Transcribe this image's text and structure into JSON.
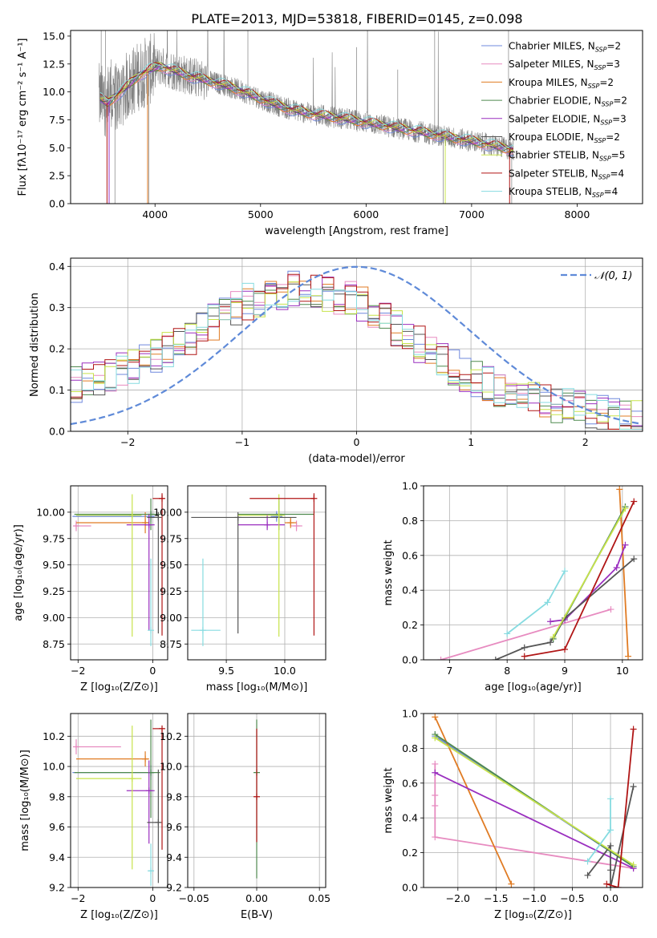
{
  "figure_title": "PLATE=2013, MJD=53818, FIBERID=0145, z=0.098",
  "colors": {
    "blue": "#6f88dd",
    "pink": "#e78bc0",
    "orange": "#e07b23",
    "green": "#4f8a4f",
    "purple": "#9a2fbf",
    "black": "#555555",
    "yellow": "#c7e34a",
    "red": "#b01515",
    "cyan": "#86dbe0",
    "data_gray": "#808080",
    "normal_blue": "#5f8ad8"
  },
  "models": [
    {
      "name": "Chabrier MILES, N$_{SSP}$=2",
      "label": "Chabrier MILES, N",
      "sub": "SSP",
      "suffix": "=2",
      "color": "#6f88dd"
    },
    {
      "name": "Salpeter MILES, N$_{SSP}$=3",
      "label": "Salpeter MILES, N",
      "sub": "SSP",
      "suffix": "=3",
      "color": "#e78bc0"
    },
    {
      "name": "Kroupa MILES, N$_{SSP}$=2",
      "label": "Kroupa MILES, N",
      "sub": "SSP",
      "suffix": "=2",
      "color": "#e07b23"
    },
    {
      "name": "Chabrier ELODIE, N$_{SSP}$=2",
      "label": "Chabrier ELODIE, N",
      "sub": "SSP",
      "suffix": "=2",
      "color": "#4f8a4f"
    },
    {
      "name": "Salpeter ELODIE, N$_{SSP}$=3",
      "label": "Salpeter ELODIE, N",
      "sub": "SSP",
      "suffix": "=3",
      "color": "#9a2fbf"
    },
    {
      "name": "Kroupa ELODIE, N$_{SSP}$=2",
      "label": "Kroupa ELODIE, N",
      "sub": "SSP",
      "suffix": "=2",
      "color": "#555555"
    },
    {
      "name": "Chabrier STELIB, N$_{SSP}$=5",
      "label": "Chabrier STELIB, N",
      "sub": "SSP",
      "suffix": "=5",
      "color": "#c7e34a"
    },
    {
      "name": "Salpeter STELIB, N$_{SSP}$=4",
      "label": "Salpeter STELIB, N",
      "sub": "SSP",
      "suffix": "=4",
      "color": "#b01515"
    },
    {
      "name": "Kroupa STELIB, N$_{SSP}$=4",
      "label": "Kroupa STELIB, N",
      "sub": "SSP",
      "suffix": "=4",
      "color": "#86dbe0"
    }
  ],
  "chart_data": [
    {
      "id": "spectrum",
      "type": "line",
      "title": "PLATE=2013, MJD=53818, FIBERID=0145, z=0.098",
      "xlabel": "wavelength [Angstrom, rest frame]",
      "ylabel": "Flux [fλ10⁻¹⁷ erg cm⁻² s⁻¹ A⁻¹]",
      "xlim": [
        3200,
        8620
      ],
      "ylim": [
        0,
        15.5
      ],
      "xticks": [
        4000,
        5000,
        6000,
        7000,
        8000
      ],
      "yticks": [
        0.0,
        2.5,
        5.0,
        7.5,
        10.0,
        12.5,
        15.0
      ],
      "grid": false,
      "legend": "upper right",
      "continuum_model": {
        "x": [
          3480,
          3550,
          3650,
          3750,
          3850,
          3950,
          4050,
          4150,
          4300,
          4500,
          4700,
          4900,
          5100,
          5300,
          5500,
          5800,
          6100,
          6400,
          6700,
          7000,
          7300,
          7400
        ],
        "y": [
          9.4,
          9.0,
          9.8,
          10.6,
          11.5,
          12.0,
          12.3,
          12.0,
          11.5,
          11.0,
          10.5,
          9.8,
          9.0,
          8.4,
          8.0,
          7.6,
          7.1,
          6.6,
          6.1,
          5.6,
          5.0,
          4.8
        ]
      },
      "data_range": {
        "x": [
          3470,
          7400
        ],
        "y_peak": 15.5
      }
    },
    {
      "id": "residual_hist",
      "type": "line",
      "xlabel": "(data-model)/error",
      "ylabel": "Normed distribution",
      "xlim": [
        -2.5,
        2.5
      ],
      "ylim": [
        0,
        0.42
      ],
      "xticks": [
        -2,
        -1,
        0,
        1,
        2
      ],
      "yticks": [
        0.0,
        0.1,
        0.2,
        0.3,
        0.4
      ],
      "grid": true,
      "legend": "upper right",
      "normal_label": "𝒩(0, 1)",
      "series_shape": {
        "x": [
          -2.5,
          -2.0,
          -1.5,
          -1.0,
          -0.5,
          0.0,
          0.5,
          1.0,
          1.5,
          2.0,
          2.5
        ],
        "y": [
          0.11,
          0.15,
          0.22,
          0.31,
          0.35,
          0.32,
          0.22,
          0.13,
          0.08,
          0.05,
          0.03
        ]
      }
    },
    {
      "id": "age_vs_Z",
      "type": "scatter",
      "xlabel": "Z [log₁₀(Z/Z⊙)]",
      "ylabel": "age  [log₁₀(age/yr)]",
      "xlim": [
        -2.2,
        0.4
      ],
      "ylim": [
        8.6,
        10.25
      ],
      "xticks": [
        -2,
        0
      ],
      "yticks": [
        8.75,
        9.0,
        9.25,
        9.5,
        9.75,
        10.0
      ],
      "grid": true,
      "points": [
        {
          "model": 0,
          "x": -0.05,
          "y": 9.96,
          "xerr": [
            2.1,
            0.1
          ],
          "yerr": [
            0.05,
            0.05
          ]
        },
        {
          "model": 1,
          "x": -2.05,
          "y": 9.87,
          "xerr": [
            0.05,
            0.4
          ],
          "yerr": [
            0.05,
            0.05
          ]
        },
        {
          "model": 2,
          "x": -0.2,
          "y": 9.9,
          "xerr": [
            1.85,
            0.1
          ],
          "yerr": [
            0.1,
            0.1
          ]
        },
        {
          "model": 3,
          "x": -0.05,
          "y": 9.98,
          "xerr": [
            2.05,
            0.25
          ],
          "yerr": [
            0.15,
            0.15
          ]
        },
        {
          "model": 4,
          "x": -0.1,
          "y": 9.88,
          "xerr": [
            0.6,
            0.15
          ],
          "yerr": [
            1.0,
            0.1
          ]
        },
        {
          "model": 5,
          "x": 0.15,
          "y": 9.95,
          "xerr": [
            0.3,
            0.05
          ],
          "yerr": [
            1.1,
            0.05
          ]
        },
        {
          "model": 6,
          "x": -0.55,
          "y": 9.97,
          "xerr": [
            1.5,
            0.25
          ],
          "yerr": [
            1.15,
            0.2
          ]
        },
        {
          "model": 7,
          "x": 0.25,
          "y": 10.13,
          "xerr": [
            0.25,
            0.05
          ],
          "yerr": [
            1.3,
            0.05
          ]
        },
        {
          "model": 8,
          "x": -0.05,
          "y": 8.88,
          "xerr": [
            0.0,
            0.0
          ],
          "yerr": [
            0.15,
            0.68
          ]
        }
      ]
    },
    {
      "id": "age_vs_mass",
      "type": "scatter",
      "xlabel": "mass [log₁₀(M/M⊙)]",
      "ylabel": "",
      "xlim": [
        9.17,
        10.35
      ],
      "ylim": [
        8.6,
        10.25
      ],
      "xticks": [
        9.5,
        10.0
      ],
      "yticks": [
        8.75,
        9.0,
        9.25,
        9.5,
        9.75,
        10.0
      ],
      "grid": true,
      "points": [
        {
          "model": 0,
          "x": 9.93,
          "y": 9.96,
          "xerr": [
            0.05,
            0.05
          ],
          "yerr": [
            0.05,
            0.05
          ]
        },
        {
          "model": 1,
          "x": 10.1,
          "y": 9.87,
          "xerr": [
            0.05,
            0.05
          ],
          "yerr": [
            0.05,
            0.05
          ]
        },
        {
          "model": 2,
          "x": 10.05,
          "y": 9.9,
          "xerr": [
            0.05,
            0.05
          ],
          "yerr": [
            0.05,
            0.05
          ]
        },
        {
          "model": 3,
          "x": 9.95,
          "y": 9.98,
          "xerr": [
            0.35,
            0.3
          ],
          "yerr": [
            0.15,
            0.15
          ]
        },
        {
          "model": 4,
          "x": 9.85,
          "y": 9.88,
          "xerr": [
            0.25,
            0.15
          ],
          "yerr": [
            0.05,
            0.1
          ]
        },
        {
          "model": 5,
          "x": 9.6,
          "y": 9.95,
          "xerr": [
            0.4,
            0.5
          ],
          "yerr": [
            1.1,
            0.05
          ]
        },
        {
          "model": 6,
          "x": 9.95,
          "y": 9.97,
          "xerr": [
            0.35,
            0.05
          ],
          "yerr": [
            1.15,
            0.2
          ]
        },
        {
          "model": 7,
          "x": 10.25,
          "y": 10.13,
          "xerr": [
            0.55,
            0.0
          ],
          "yerr": [
            1.3,
            0.05
          ]
        },
        {
          "model": 8,
          "x": 9.3,
          "y": 8.88,
          "xerr": [
            0.1,
            0.15
          ],
          "yerr": [
            0.15,
            0.68
          ]
        }
      ]
    },
    {
      "id": "massweight_vs_age",
      "type": "line",
      "xlabel": "age  [log₁₀(age/yr)]",
      "ylabel": "mass weight",
      "xlim": [
        6.55,
        10.35
      ],
      "ylim": [
        0,
        1.0
      ],
      "xticks": [
        7,
        8,
        9,
        10
      ],
      "yticks": [
        0.0,
        0.2,
        0.4,
        0.6,
        0.8,
        1.0
      ],
      "grid": true,
      "series": [
        {
          "model": 0,
          "x": [
            8.8,
            10.05
          ],
          "y": [
            0.12,
            0.88
          ]
        },
        {
          "model": 1,
          "x": [
            6.85,
            9.8
          ],
          "y": [
            0.0,
            0.29
          ]
        },
        {
          "model": 2,
          "x": [
            10.1,
            9.95
          ],
          "y": [
            0.02,
            0.98
          ]
        },
        {
          "model": 3,
          "x": [
            8.8,
            10.05
          ],
          "y": [
            0.12,
            0.88
          ]
        },
        {
          "model": 4,
          "x": [
            8.75,
            9.0,
            9.9,
            10.05
          ],
          "y": [
            0.22,
            0.23,
            0.53,
            0.66
          ]
        },
        {
          "model": 5,
          "x": [
            7.8,
            8.3,
            8.75,
            9.0,
            10.2
          ],
          "y": [
            0.0,
            0.07,
            0.1,
            0.24,
            0.58
          ]
        },
        {
          "model": 6,
          "x": [
            8.8,
            10.05
          ],
          "y": [
            0.13,
            0.87
          ]
        },
        {
          "model": 7,
          "x": [
            8.3,
            9.0,
            10.2
          ],
          "y": [
            0.02,
            0.06,
            0.91
          ]
        },
        {
          "model": 8,
          "x": [
            8.0,
            8.7,
            9.0
          ],
          "y": [
            0.15,
            0.33,
            0.51
          ]
        }
      ]
    },
    {
      "id": "mass_vs_Z",
      "type": "scatter",
      "xlabel": "Z [log₁₀(Z/Z⊙)]",
      "ylabel": "mass [log₁₀(M/M⊙)]",
      "xlim": [
        -2.2,
        0.4
      ],
      "ylim": [
        9.2,
        10.35
      ],
      "xticks": [
        -2,
        0
      ],
      "yticks": [
        9.2,
        9.4,
        9.6,
        9.8,
        10.0,
        10.2
      ],
      "grid": true,
      "points": [
        {
          "model": 0,
          "x": -0.05,
          "y": 9.96,
          "xerr": [
            2.1,
            0.1
          ],
          "yerr": [
            0.05,
            0.05
          ]
        },
        {
          "model": 1,
          "x": -2.05,
          "y": 10.13,
          "xerr": [
            0.05,
            1.2
          ],
          "yerr": [
            0.05,
            0.05
          ]
        },
        {
          "model": 2,
          "x": -0.2,
          "y": 10.05,
          "xerr": [
            1.85,
            0.1
          ],
          "yerr": [
            0.05,
            0.05
          ]
        },
        {
          "model": 3,
          "x": -0.05,
          "y": 9.96,
          "xerr": [
            2.05,
            0.25
          ],
          "yerr": [
            0.3,
            0.35
          ]
        },
        {
          "model": 4,
          "x": -0.1,
          "y": 9.84,
          "xerr": [
            0.6,
            0.15
          ],
          "yerr": [
            0.35,
            0.2
          ]
        },
        {
          "model": 5,
          "x": 0.15,
          "y": 9.63,
          "xerr": [
            0.3,
            0.05
          ],
          "yerr": [
            0.4,
            0.35
          ]
        },
        {
          "model": 6,
          "x": -0.55,
          "y": 9.92,
          "xerr": [
            1.5,
            0.25
          ],
          "yerr": [
            0.6,
            0.35
          ]
        },
        {
          "model": 7,
          "x": 0.25,
          "y": 10.25,
          "xerr": [
            0.25,
            0.05
          ],
          "yerr": [
            0.8,
            0.0
          ]
        },
        {
          "model": 8,
          "x": -0.05,
          "y": 9.31,
          "xerr": [
            0.05,
            0.05
          ],
          "yerr": [
            0.1,
            0.18
          ]
        }
      ]
    },
    {
      "id": "mass_vs_ebv",
      "type": "scatter",
      "xlabel": "E(B-V)",
      "ylabel": "",
      "xlim": [
        -0.055,
        0.055
      ],
      "ylim": [
        9.2,
        10.35
      ],
      "xticks": [
        -0.05,
        0.0,
        0.05
      ],
      "yticks": [
        9.2,
        9.4,
        9.6,
        9.8,
        10.0,
        10.2
      ],
      "grid": true,
      "points": [
        {
          "model": 3,
          "x": 0.0,
          "y": 9.96,
          "xerr": [
            0,
            0
          ],
          "yerr": [
            0.7,
            0.35
          ]
        },
        {
          "model": 7,
          "x": 0.0,
          "y": 9.8,
          "xerr": [
            0,
            0
          ],
          "yerr": [
            0.3,
            0.45
          ]
        }
      ]
    },
    {
      "id": "massweight_vs_Z",
      "type": "line",
      "xlabel": "Z [log₁₀(Z/Z⊙)]",
      "ylabel": "mass weight",
      "xlim": [
        -2.45,
        0.42
      ],
      "ylim": [
        0,
        1.0
      ],
      "xticks": [
        -2.0,
        -1.5,
        -1.0,
        -0.5,
        0.0
      ],
      "yticks": [
        0.0,
        0.2,
        0.4,
        0.6,
        0.8,
        1.0
      ],
      "grid": true,
      "series": [
        {
          "model": 0,
          "x": [
            -2.3,
            0.3
          ],
          "y": [
            0.87,
            0.12
          ]
        },
        {
          "model": 1,
          "x": [
            -2.3,
            -2.3,
            -2.3,
            -2.3,
            0.3
          ],
          "y": [
            0.71,
            0.53,
            0.47,
            0.29,
            0.11
          ]
        },
        {
          "model": 2,
          "x": [
            -2.3,
            -1.3
          ],
          "y": [
            0.98,
            0.02
          ]
        },
        {
          "model": 3,
          "x": [
            -2.3,
            0.3
          ],
          "y": [
            0.88,
            0.12
          ]
        },
        {
          "model": 4,
          "x": [
            -2.3,
            0.3
          ],
          "y": [
            0.66,
            0.11
          ]
        },
        {
          "model": 5,
          "x": [
            -0.3,
            0.0,
            0.0,
            0.0,
            0.3
          ],
          "y": [
            0.07,
            0.24,
            0.1,
            0.0,
            0.58
          ]
        },
        {
          "model": 6,
          "x": [
            -2.3,
            0.3
          ],
          "y": [
            0.86,
            0.13
          ]
        },
        {
          "model": 7,
          "x": [
            -0.05,
            0.1,
            0.3
          ],
          "y": [
            0.02,
            0.0,
            0.91
          ]
        },
        {
          "model": 8,
          "x": [
            -0.3,
            0.0,
            0.0
          ],
          "y": [
            0.15,
            0.33,
            0.51
          ]
        }
      ]
    }
  ]
}
